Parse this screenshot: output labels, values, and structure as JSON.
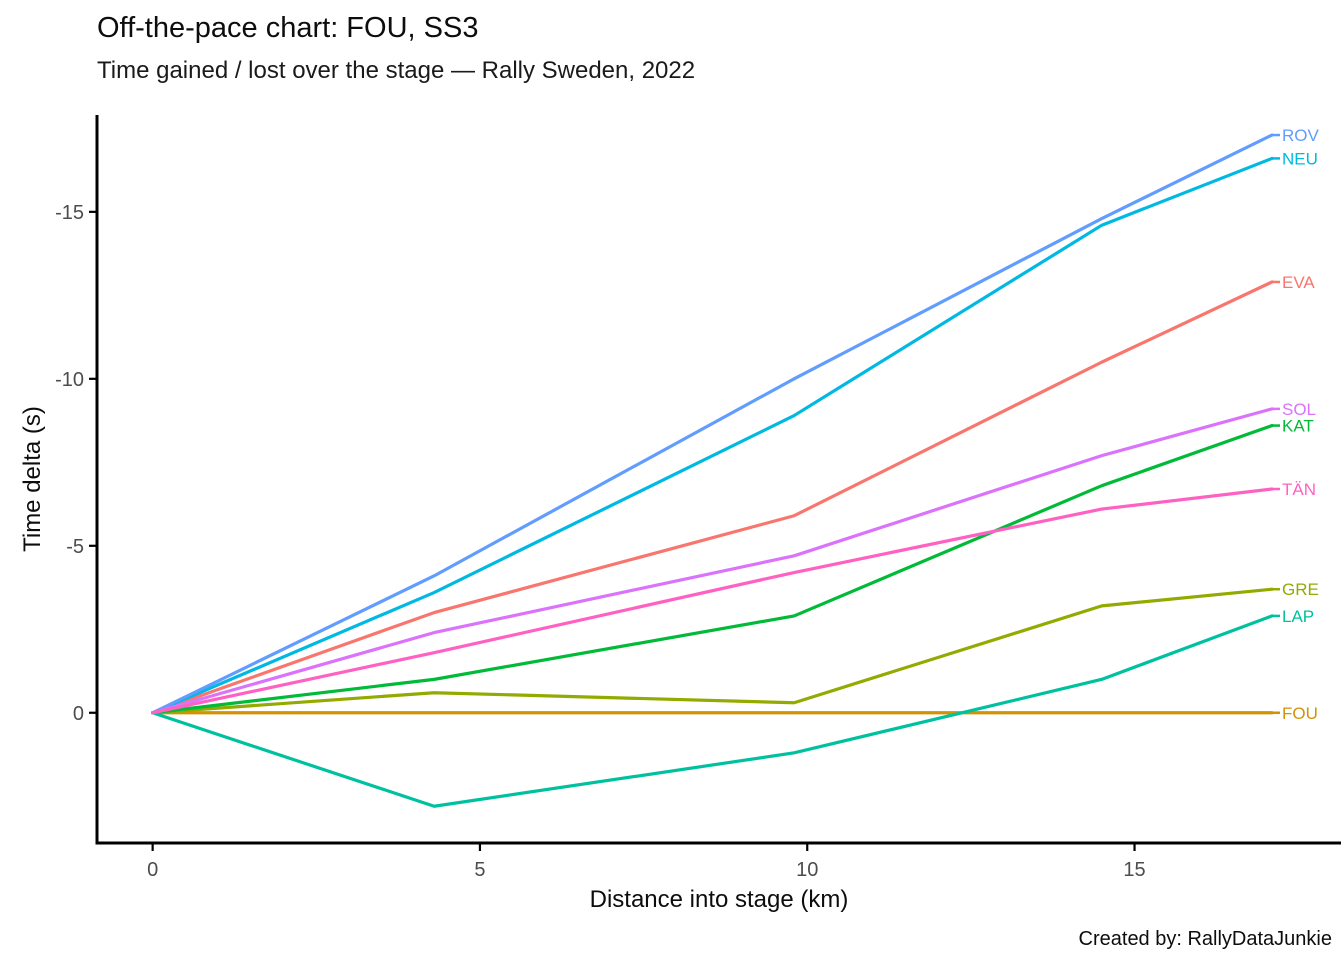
{
  "header": {
    "title": "Off-the-pace chart: FOU, SS3",
    "subtitle": "Time gained / lost over the stage — Rally Sweden, 2022"
  },
  "caption": "Created by: RallyDataJunkie",
  "chart_data": {
    "type": "line",
    "title": "Off-the-pace chart: FOU, SS3",
    "subtitle": "Time gained / lost over the stage — Rally Sweden, 2022",
    "xlabel": "Distance into stage (km)",
    "ylabel": "Time delta (s)",
    "reference_driver": "FOU",
    "x": [
      0,
      4.3,
      9.8,
      14.5,
      17.1
    ],
    "x_ticks": [
      "0",
      "5",
      "10",
      "15"
    ],
    "x_tick_values": [
      0,
      5,
      10,
      15
    ],
    "y_ticks": [
      "0",
      "-5",
      "-10",
      "-15"
    ],
    "y_tick_values": [
      0,
      -5,
      -10,
      -15
    ],
    "xlim": [
      -0.85,
      18.2
    ],
    "ylim": [
      3.9,
      -17.9
    ],
    "y_axis_inverted": true,
    "grid": false,
    "legend_position": "line-end-labels-right",
    "series": [
      {
        "name": "EVA",
        "color": "#F8766D",
        "values": [
          0,
          -3.0,
          -5.9,
          -10.5,
          -12.9
        ]
      },
      {
        "name": "FOU",
        "color": "#D39200",
        "values": [
          0,
          0,
          0,
          0,
          0
        ]
      },
      {
        "name": "GRE",
        "color": "#93AA00",
        "values": [
          0,
          -0.6,
          -0.3,
          -3.2,
          -3.7
        ]
      },
      {
        "name": "KAT",
        "color": "#00BA38",
        "values": [
          0,
          -1.0,
          -2.9,
          -6.8,
          -8.6
        ]
      },
      {
        "name": "LAP",
        "color": "#00C19F",
        "values": [
          0,
          2.8,
          1.2,
          -1.0,
          -2.9
        ]
      },
      {
        "name": "NEU",
        "color": "#00B9E3",
        "values": [
          0,
          -3.6,
          -8.9,
          -14.6,
          -16.6
        ]
      },
      {
        "name": "ROV",
        "color": "#619CFF",
        "values": [
          0,
          -4.1,
          -10.0,
          -14.8,
          -17.3
        ]
      },
      {
        "name": "SOL",
        "color": "#DB72FB",
        "values": [
          0,
          -2.4,
          -4.7,
          -7.7,
          -9.1
        ]
      },
      {
        "name": "TÄN",
        "color": "#FF61C3",
        "values": [
          0,
          -1.8,
          -4.2,
          -6.1,
          -6.7
        ]
      }
    ]
  }
}
